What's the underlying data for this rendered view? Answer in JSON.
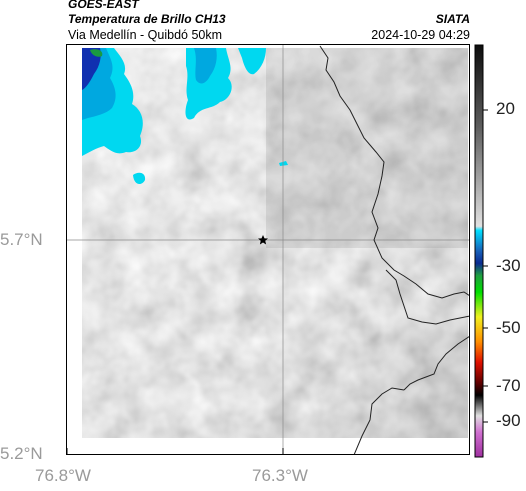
{
  "header": {
    "title_line1": "GOES-EAST",
    "title_line2": "Temperatura de Brillo CH13",
    "subtitle": "Via Medellín - Quibdó 50km",
    "brand": "SIATA",
    "datetime": "2024-10-29 04:29"
  },
  "map": {
    "lat_ticks": [
      "5.7°N",
      "5.2°N"
    ],
    "lon_ticks": [
      "76.8°W",
      "76.3°W"
    ],
    "marker_icon": "star-icon"
  },
  "colorbar": {
    "labels": [
      "20",
      "-30",
      "-50",
      "-70",
      "-90"
    ],
    "colors": [
      "#111111",
      "#6e6e6e",
      "#d8d8d8",
      "#00e5ff",
      "#0050c8",
      "#00c800",
      "#ffff00",
      "#ff6000",
      "#c00000",
      "#000000",
      "#d0d0d0",
      "#b040c0"
    ]
  }
}
